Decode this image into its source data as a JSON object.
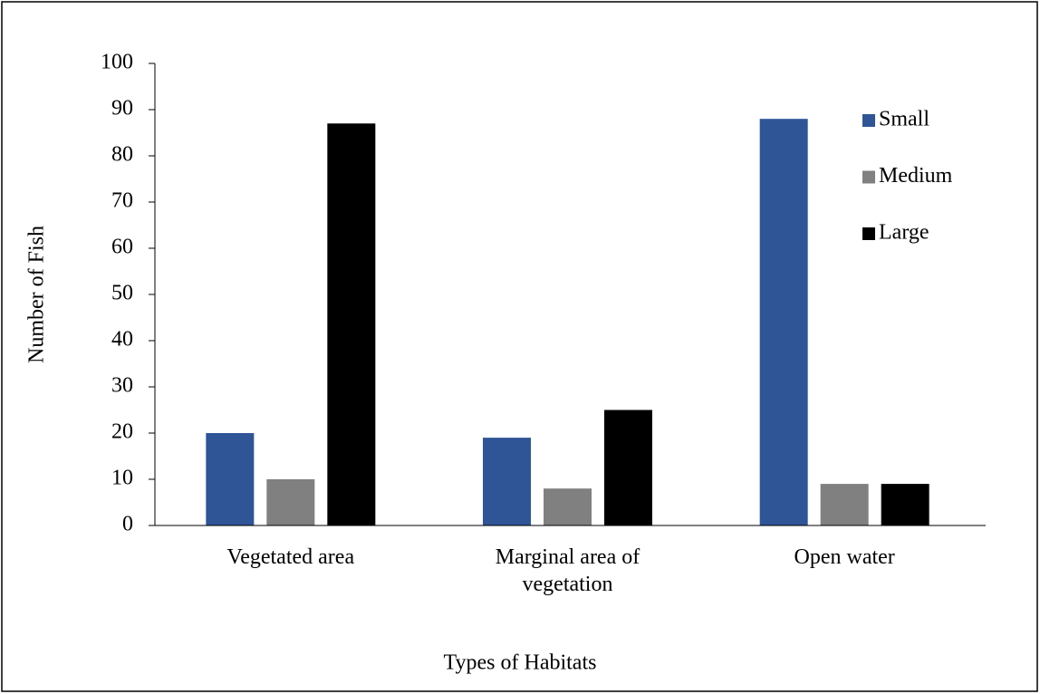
{
  "chart_data": {
    "type": "bar",
    "x_label": "Types of Habitats",
    "y_label": "Number of Fish",
    "categories": [
      "Vegetated area",
      "Marginal area of vegetation",
      "Open water"
    ],
    "series": [
      {
        "name": "Small",
        "color": "#2f5597",
        "values": [
          20,
          19,
          88
        ]
      },
      {
        "name": "Medium",
        "color": "#808080",
        "values": [
          10,
          8,
          9
        ]
      },
      {
        "name": "Large",
        "color": "#000000",
        "values": [
          87,
          25,
          9
        ]
      }
    ],
    "ylim": [
      0,
      100
    ],
    "yticks": [
      0,
      10,
      20,
      30,
      40,
      50,
      60,
      70,
      80,
      90,
      100
    ],
    "grid": false,
    "legend": "top-right"
  }
}
